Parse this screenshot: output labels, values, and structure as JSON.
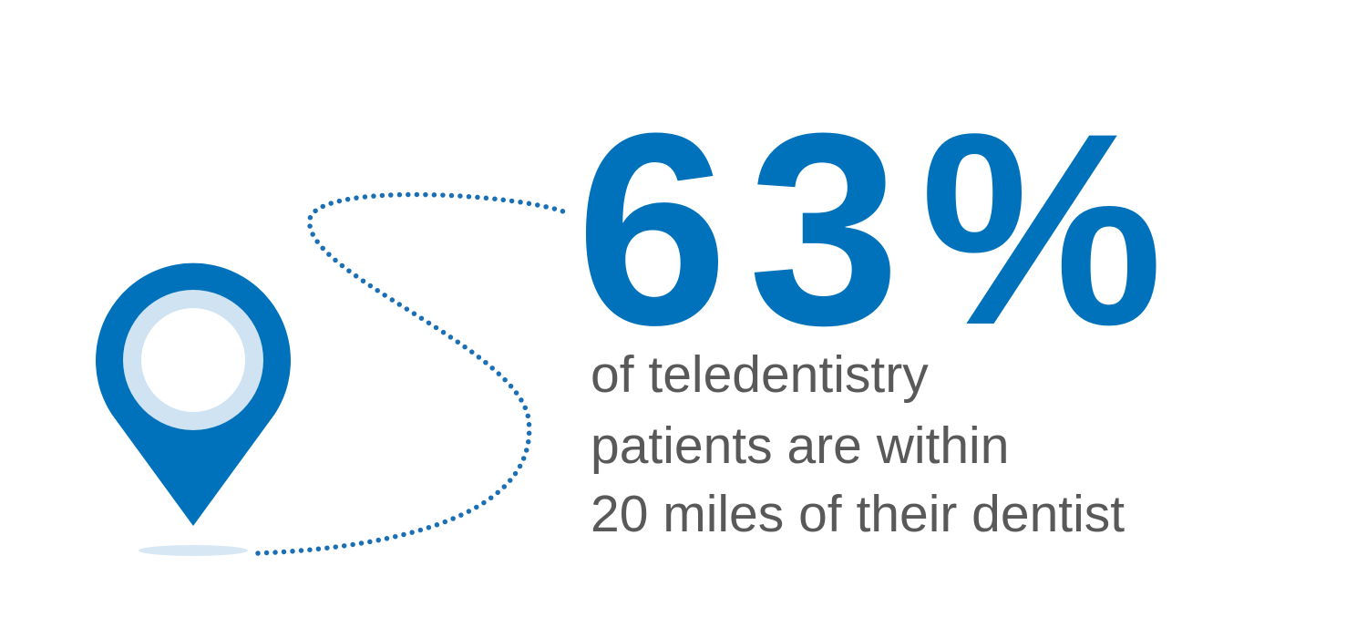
{
  "headline": "63%",
  "lines": [
    "of teledentistry",
    "patients are within",
    "20 miles of their dentist"
  ]
}
